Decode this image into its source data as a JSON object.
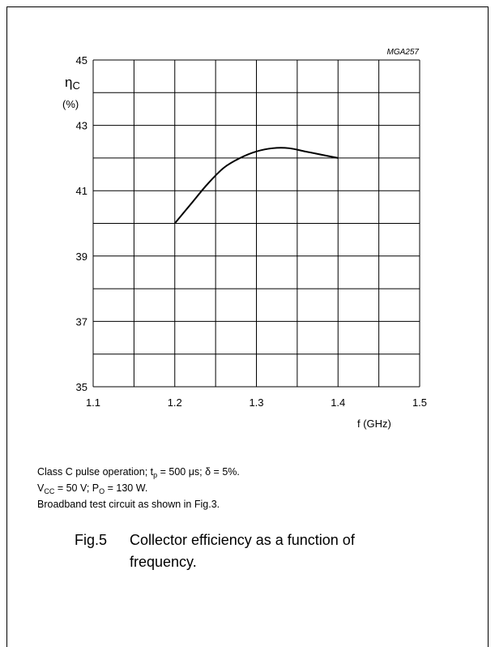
{
  "chart_data": {
    "type": "line",
    "code": "MGA257",
    "y_symbol": "η",
    "y_symbol_sub": "C",
    "y_unit": "(%)",
    "xlabel": "f (GHz)",
    "xlim": [
      1.1,
      1.5
    ],
    "ylim": [
      35,
      45
    ],
    "x_ticks": [
      "1.1",
      "1.2",
      "1.3",
      "1.4",
      "1.5"
    ],
    "y_ticks": [
      "35",
      "37",
      "39",
      "41",
      "43",
      "45"
    ],
    "grid": true,
    "series": [
      {
        "x": [
          1.2,
          1.22,
          1.24,
          1.26,
          1.28,
          1.3,
          1.32,
          1.34,
          1.36,
          1.38,
          1.4
        ],
        "y": [
          40.0,
          40.6,
          41.2,
          41.7,
          42.0,
          42.2,
          42.3,
          42.3,
          42.2,
          42.1,
          42.0
        ]
      }
    ]
  },
  "notes": {
    "line1_a": "Class C pulse operation; t",
    "line1_sub": "p",
    "line1_b": " = 500 μs; δ = 5%.",
    "line2_a": "V",
    "line2_sub1": "CC",
    "line2_b": " = 50 V; P",
    "line2_sub2": "O",
    "line2_c": " = 130 W.",
    "line3": "Broadband test circuit as shown in Fig.3."
  },
  "caption": {
    "number": "Fig.5",
    "text": "Collector efficiency as a function of frequency."
  }
}
